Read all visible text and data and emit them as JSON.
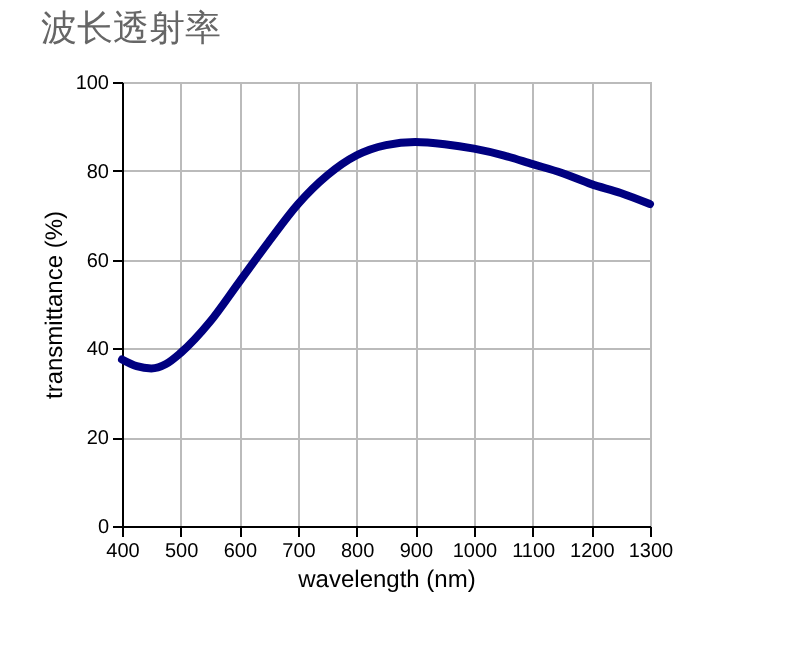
{
  "chart_data": {
    "type": "line",
    "title": "波长透射率",
    "xlabel": "wavelength (nm)",
    "ylabel": "transmittance (%)",
    "x": [
      400,
      425,
      450,
      475,
      500,
      550,
      600,
      650,
      700,
      750,
      800,
      850,
      900,
      950,
      1000,
      1050,
      1100,
      1150,
      1200,
      1250,
      1300
    ],
    "series": [
      {
        "color": "#000080",
        "values": [
          37.5,
          36,
          35.5,
          36.5,
          39,
          46,
          55,
          64,
          72.5,
          79,
          83.5,
          85.8,
          86.5,
          86,
          85,
          83.5,
          81.5,
          79.5,
          77,
          75,
          72.5
        ]
      }
    ],
    "xlim": [
      400,
      1300
    ],
    "xticks": [
      400,
      500,
      600,
      700,
      800,
      900,
      1000,
      1100,
      1200,
      1300
    ],
    "ylim": [
      0,
      100
    ],
    "yticks": [
      0,
      20,
      40,
      60,
      80,
      100
    ],
    "grid": true,
    "marker": "none",
    "line_style": "solid"
  }
}
